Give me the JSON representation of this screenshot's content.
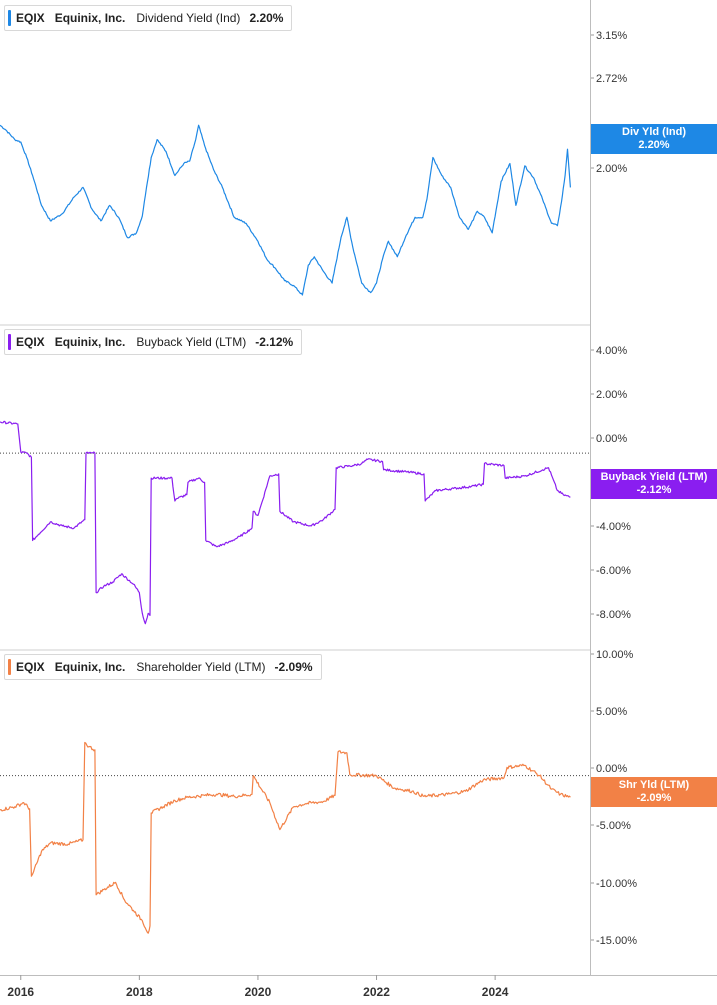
{
  "colors": {
    "dividend": "#1e88e5",
    "buyback": "#8a1ef0",
    "shareholder": "#f28146"
  },
  "chart_data": [
    {
      "type": "line",
      "legend": {
        "ticker": "EQIX",
        "company": "Equinix, Inc.",
        "metric": "Dividend Yield (Ind)",
        "value": "2.20%"
      },
      "badge": {
        "label": "Div Yld (Ind)",
        "value": "2.20%"
      },
      "yticks": [
        "3.15%",
        "2.72%",
        "2.00%"
      ],
      "ylim": [
        1.2,
        3.6
      ],
      "series": [
        {
          "x": [
            2015.65,
            2015.75,
            2015.9,
            2016.0,
            2016.1,
            2016.2,
            2016.35,
            2016.5,
            2016.7,
            2016.9,
            2017.05,
            2017.2,
            2017.35,
            2017.5,
            2017.65,
            2017.8,
            2017.95,
            2018.05,
            2018.12,
            2018.2,
            2018.3,
            2018.45,
            2018.6,
            2018.75,
            2018.85,
            2018.95,
            2019.0,
            2019.1,
            2019.25,
            2019.4,
            2019.6,
            2019.8,
            2020.0,
            2020.15,
            2020.3,
            2020.45,
            2020.6,
            2020.75,
            2020.85,
            2020.95,
            2021.1,
            2021.25,
            2021.4,
            2021.5,
            2021.6,
            2021.75,
            2021.9,
            2022.0,
            2022.1,
            2022.2,
            2022.35,
            2022.5,
            2022.65,
            2022.78,
            2022.85,
            2022.95,
            2023.1,
            2023.25,
            2023.4,
            2023.55,
            2023.7,
            2023.82,
            2023.95,
            2024.1,
            2024.25,
            2024.35,
            2024.5,
            2024.65,
            2024.8,
            2024.95,
            2025.05,
            2025.12,
            2025.18,
            2025.22,
            2025.27
          ],
          "y": [
            2.72,
            2.68,
            2.6,
            2.58,
            2.45,
            2.3,
            2.05,
            1.92,
            1.98,
            2.12,
            2.2,
            2.02,
            1.92,
            2.05,
            1.95,
            1.78,
            1.82,
            1.96,
            2.2,
            2.45,
            2.6,
            2.5,
            2.3,
            2.4,
            2.42,
            2.6,
            2.72,
            2.55,
            2.35,
            2.2,
            1.95,
            1.9,
            1.75,
            1.6,
            1.52,
            1.42,
            1.38,
            1.3,
            1.55,
            1.62,
            1.5,
            1.4,
            1.78,
            1.95,
            1.7,
            1.4,
            1.32,
            1.4,
            1.6,
            1.75,
            1.62,
            1.8,
            1.95,
            1.95,
            2.1,
            2.45,
            2.3,
            2.2,
            1.95,
            1.85,
            2.0,
            1.95,
            1.82,
            2.25,
            2.4,
            2.05,
            2.38,
            2.28,
            2.1,
            1.9,
            1.88,
            2.08,
            2.3,
            2.52,
            2.2
          ]
        }
      ]
    },
    {
      "type": "line",
      "legend": {
        "ticker": "EQIX",
        "company": "Equinix, Inc.",
        "metric": "Buyback Yield (LTM)",
        "value": "-2.12%"
      },
      "badge": {
        "label": "Buyback Yield (LTM)",
        "value": "-2.12%"
      },
      "yticks": [
        "4.00%",
        "2.00%",
        "0.00%",
        "-2.00%",
        "-4.00%",
        "-6.00%",
        "-8.00%"
      ],
      "ylim": [
        -8.6,
        5.2
      ],
      "zero_line": true,
      "series": [
        {
          "x": [
            2015.65,
            2015.95,
            2016.0,
            2016.1,
            2016.18,
            2016.2,
            2016.3,
            2016.5,
            2016.7,
            2016.9,
            2017.08,
            2017.1,
            2017.2,
            2017.25,
            2017.27,
            2017.4,
            2017.55,
            2017.7,
            2017.9,
            2018.0,
            2018.05,
            2018.1,
            2018.15,
            2018.18,
            2018.2,
            2018.4,
            2018.55,
            2018.6,
            2018.62,
            2018.8,
            2018.82,
            2019.0,
            2019.1,
            2019.12,
            2019.3,
            2019.5,
            2019.7,
            2019.9,
            2019.92,
            2020.0,
            2020.2,
            2020.35,
            2020.37,
            2020.6,
            2020.9,
            2021.1,
            2021.3,
            2021.32,
            2021.6,
            2021.75,
            2021.85,
            2022.1,
            2022.12,
            2022.5,
            2022.8,
            2022.82,
            2023.0,
            2023.3,
            2023.6,
            2023.8,
            2023.82,
            2024.15,
            2024.17,
            2024.5,
            2024.8,
            2024.9,
            2025.05,
            2025.15,
            2025.27
          ],
          "y": [
            1.5,
            1.4,
            0.05,
            0.0,
            -0.2,
            -4.2,
            -3.9,
            -3.3,
            -3.5,
            -3.6,
            -3.2,
            0.0,
            0.0,
            0.0,
            -6.7,
            -6.4,
            -6.2,
            -5.8,
            -6.3,
            -6.7,
            -7.7,
            -8.2,
            -7.7,
            -7.8,
            -1.2,
            -1.2,
            -1.2,
            -2.3,
            -2.2,
            -2.0,
            -1.4,
            -1.2,
            -1.4,
            -4.2,
            -4.5,
            -4.3,
            -4.0,
            -3.6,
            -2.8,
            -3.0,
            -1.1,
            -1.0,
            -2.8,
            -3.3,
            -3.5,
            -3.2,
            -2.7,
            -0.7,
            -0.6,
            -0.5,
            -0.3,
            -0.4,
            -0.8,
            -0.9,
            -1.0,
            -2.3,
            -1.8,
            -1.7,
            -1.6,
            -1.5,
            -0.5,
            -0.6,
            -1.2,
            -1.1,
            -0.8,
            -0.7,
            -1.8,
            -2.0,
            -2.12
          ]
        }
      ]
    },
    {
      "type": "line",
      "legend": {
        "ticker": "EQIX",
        "company": "Equinix, Inc.",
        "metric": "Shareholder Yield (LTM)",
        "value": "-2.09%"
      },
      "badge": {
        "label": "Shr Yld (LTM)",
        "value": "-2.09%"
      },
      "yticks": [
        "10.00%",
        "5.00%",
        "0.00%",
        "-5.00%",
        "-10.00%",
        "-15.00%"
      ],
      "ylim": [
        -17.5,
        10.2
      ],
      "zero_line": true,
      "series": [
        {
          "x": [
            2015.65,
            2015.9,
            2016.05,
            2016.15,
            2016.18,
            2016.2,
            2016.35,
            2016.5,
            2016.8,
            2017.05,
            2017.08,
            2017.15,
            2017.25,
            2017.27,
            2017.4,
            2017.6,
            2017.75,
            2017.9,
            2018.05,
            2018.15,
            2018.18,
            2018.2,
            2018.4,
            2018.6,
            2018.8,
            2019.1,
            2019.3,
            2019.6,
            2019.9,
            2019.92,
            2020.2,
            2020.37,
            2020.6,
            2020.8,
            2021.1,
            2021.3,
            2021.35,
            2021.5,
            2021.55,
            2022.0,
            2022.3,
            2022.6,
            2022.8,
            2023.2,
            2023.5,
            2023.8,
            2024.15,
            2024.2,
            2024.5,
            2024.75,
            2024.95,
            2025.1,
            2025.27
          ],
          "y": [
            -3.3,
            -3.0,
            -2.6,
            -3.2,
            -9.7,
            -9.5,
            -7.3,
            -6.5,
            -6.6,
            -6.2,
            3.2,
            2.8,
            2.5,
            -11.5,
            -11.0,
            -10.3,
            -12.0,
            -13.0,
            -14.0,
            -15.2,
            -14.5,
            -3.6,
            -3.0,
            -2.4,
            -2.1,
            -1.9,
            -1.8,
            -2.0,
            -1.8,
            0.0,
            -2.6,
            -5.2,
            -3.0,
            -2.7,
            -2.5,
            -1.9,
            2.3,
            2.2,
            0.1,
            0.0,
            -1.2,
            -1.5,
            -2.0,
            -1.8,
            -1.5,
            -0.4,
            -0.2,
            0.8,
            1.0,
            0.0,
            -1.3,
            -1.8,
            -2.09
          ]
        }
      ]
    }
  ],
  "x_axis": {
    "ticks": [
      "2016",
      "2018",
      "2020",
      "2022",
      "2024"
    ],
    "values": [
      2016,
      2018,
      2020,
      2022,
      2024
    ],
    "xlim": [
      2015.65,
      2025.6
    ]
  }
}
